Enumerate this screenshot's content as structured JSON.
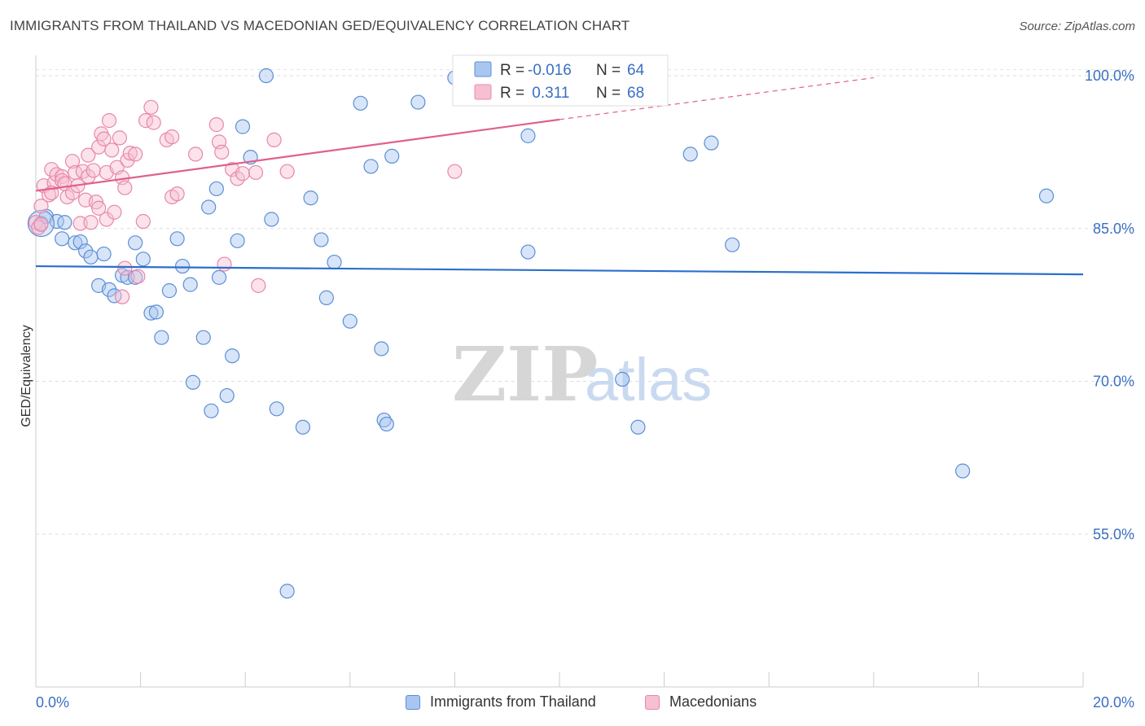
{
  "header": {
    "title": "IMMIGRANTS FROM THAILAND VS MACEDONIAN GED/EQUIVALENCY CORRELATION CHART",
    "source": "Source: ZipAtlas.com"
  },
  "watermark": {
    "zip": "ZIP",
    "atlas": "atlas"
  },
  "chart_data": {
    "type": "scatter",
    "ylabel": "GED/Equivalency",
    "xlabel": "",
    "xlim": [
      0,
      20
    ],
    "ylim": [
      40,
      102
    ],
    "x_tick_labels": {
      "min": "0.0%",
      "max": "20.0%"
    },
    "y_ticks": [
      {
        "value": 100,
        "label": "100.0%"
      },
      {
        "value": 85,
        "label": "85.0%"
      },
      {
        "value": 70,
        "label": "70.0%"
      },
      {
        "value": 55,
        "label": "55.0%"
      }
    ],
    "grid": true,
    "legend_placement": "top-center",
    "legend": [
      {
        "r_label": "R =",
        "r_value": "-0.016",
        "n_label": "N =",
        "n_value": "64"
      },
      {
        "r_label": "R =",
        "r_value": " 0.311",
        "n_label": "N =",
        "n_value": "68"
      }
    ],
    "series": [
      {
        "name": "Immigrants from Thailand",
        "color": "#5b8fd6",
        "fill": "#a9c6f0",
        "trend": {
          "x": [
            0,
            20
          ],
          "y": [
            81.3,
            80.5
          ],
          "color": "#2b6fcc"
        },
        "points": [
          [
            0.1,
            85.5
          ],
          [
            0.2,
            86.2
          ],
          [
            0.4,
            85.7
          ],
          [
            0.55,
            85.6
          ],
          [
            0.5,
            84.0
          ],
          [
            0.75,
            83.6
          ],
          [
            0.85,
            83.7
          ],
          [
            0.95,
            82.8
          ],
          [
            1.05,
            82.2
          ],
          [
            1.3,
            82.5
          ],
          [
            1.2,
            79.4
          ],
          [
            1.4,
            79.0
          ],
          [
            1.5,
            78.4
          ],
          [
            1.65,
            80.4
          ],
          [
            1.75,
            80.2
          ],
          [
            1.9,
            80.2
          ],
          [
            1.9,
            83.6
          ],
          [
            2.05,
            82.0
          ],
          [
            2.2,
            76.7
          ],
          [
            2.3,
            76.8
          ],
          [
            2.4,
            74.3
          ],
          [
            2.55,
            78.9
          ],
          [
            2.7,
            84.0
          ],
          [
            2.8,
            81.3
          ],
          [
            2.95,
            79.5
          ],
          [
            3.0,
            69.9
          ],
          [
            3.2,
            74.3
          ],
          [
            3.3,
            87.1
          ],
          [
            3.35,
            67.1
          ],
          [
            3.45,
            88.9
          ],
          [
            3.5,
            80.2
          ],
          [
            3.65,
            68.6
          ],
          [
            3.75,
            72.5
          ],
          [
            3.85,
            83.8
          ],
          [
            3.95,
            95.0
          ],
          [
            4.1,
            92.0
          ],
          [
            4.4,
            100.0
          ],
          [
            4.5,
            85.9
          ],
          [
            4.6,
            67.3
          ],
          [
            4.8,
            49.4
          ],
          [
            5.1,
            65.5
          ],
          [
            5.25,
            88.0
          ],
          [
            5.45,
            83.9
          ],
          [
            5.55,
            78.2
          ],
          [
            5.7,
            81.7
          ],
          [
            6.0,
            75.9
          ],
          [
            6.2,
            97.3
          ],
          [
            6.4,
            91.1
          ],
          [
            6.6,
            73.2
          ],
          [
            6.65,
            66.2
          ],
          [
            6.7,
            65.8
          ],
          [
            6.8,
            92.1
          ],
          [
            7.3,
            97.4
          ],
          [
            9.4,
            94.1
          ],
          [
            9.4,
            82.7
          ],
          [
            11.2,
            70.2
          ],
          [
            11.5,
            65.5
          ],
          [
            12.5,
            92.3
          ],
          [
            12.9,
            93.4
          ],
          [
            13.3,
            83.4
          ],
          [
            17.7,
            61.2
          ],
          [
            19.3,
            88.2
          ],
          [
            8.5,
            99.0
          ],
          [
            8.0,
            99.8
          ]
        ]
      },
      {
        "name": "Macedonians",
        "color": "#e888a8",
        "fill": "#f7bfd2",
        "trend": {
          "x": [
            0,
            10
          ],
          "y": [
            88.7,
            95.7
          ],
          "dash_x": [
            10,
            16
          ],
          "dash_y": [
            95.7,
            99.8
          ],
          "color": "#e0608c"
        },
        "points": [
          [
            0.0,
            85.6
          ],
          [
            0.05,
            85.1
          ],
          [
            0.1,
            85.4
          ],
          [
            0.1,
            87.2
          ],
          [
            0.15,
            89.2
          ],
          [
            0.25,
            88.3
          ],
          [
            0.3,
            90.8
          ],
          [
            0.35,
            89.5
          ],
          [
            0.4,
            90.3
          ],
          [
            0.5,
            90.1
          ],
          [
            0.5,
            89.7
          ],
          [
            0.55,
            89.4
          ],
          [
            0.6,
            88.1
          ],
          [
            0.7,
            88.5
          ],
          [
            0.7,
            91.6
          ],
          [
            0.75,
            90.5
          ],
          [
            0.8,
            89.2
          ],
          [
            0.85,
            85.5
          ],
          [
            0.9,
            90.6
          ],
          [
            0.95,
            87.8
          ],
          [
            1.0,
            90.1
          ],
          [
            1.0,
            92.2
          ],
          [
            1.05,
            85.6
          ],
          [
            1.1,
            90.7
          ],
          [
            1.15,
            87.6
          ],
          [
            1.2,
            87.0
          ],
          [
            1.2,
            93.0
          ],
          [
            1.25,
            94.3
          ],
          [
            1.3,
            93.8
          ],
          [
            1.35,
            90.5
          ],
          [
            1.35,
            85.9
          ],
          [
            1.4,
            95.6
          ],
          [
            1.45,
            92.7
          ],
          [
            1.5,
            86.6
          ],
          [
            1.55,
            91.0
          ],
          [
            1.6,
            93.9
          ],
          [
            1.65,
            78.3
          ],
          [
            1.65,
            90.0
          ],
          [
            1.7,
            89.0
          ],
          [
            1.7,
            81.1
          ],
          [
            1.75,
            91.7
          ],
          [
            1.8,
            92.4
          ],
          [
            1.9,
            92.3
          ],
          [
            1.95,
            80.3
          ],
          [
            2.05,
            85.7
          ],
          [
            2.1,
            95.6
          ],
          [
            2.2,
            96.9
          ],
          [
            2.25,
            95.4
          ],
          [
            2.5,
            93.7
          ],
          [
            2.6,
            88.1
          ],
          [
            2.6,
            94.0
          ],
          [
            2.7,
            88.4
          ],
          [
            3.05,
            92.3
          ],
          [
            3.45,
            95.2
          ],
          [
            3.5,
            93.5
          ],
          [
            3.55,
            92.5
          ],
          [
            3.6,
            81.5
          ],
          [
            3.75,
            90.8
          ],
          [
            3.85,
            89.9
          ],
          [
            3.95,
            90.4
          ],
          [
            4.25,
            79.4
          ],
          [
            4.2,
            90.5
          ],
          [
            4.55,
            93.7
          ],
          [
            4.8,
            90.6
          ],
          [
            8.0,
            90.6
          ],
          [
            8.1,
            98.2
          ],
          [
            8.2,
            99.8
          ],
          [
            0.3,
            88.5
          ]
        ]
      }
    ]
  },
  "bottom_legend": [
    {
      "label": "Immigrants from Thailand"
    },
    {
      "label": "Macedonians"
    }
  ]
}
